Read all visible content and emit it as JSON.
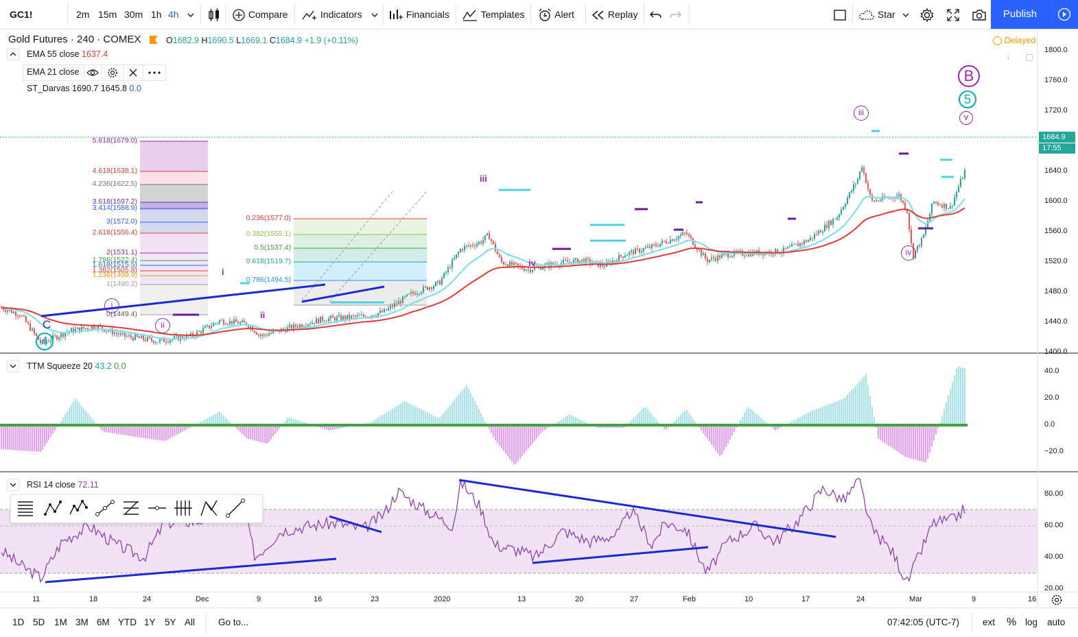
{
  "toolbar": {
    "symbol": "GC1!",
    "intervals": [
      "2m",
      "15m",
      "30m",
      "1h",
      "4h"
    ],
    "active_interval": "4h",
    "compare_label": "Compare",
    "indicators_label": "Indicators",
    "financials_label": "Financials",
    "templates_label": "Templates",
    "alert_label": "Alert",
    "replay_label": "Replay",
    "star_label": "Star",
    "publish_label": "Publish",
    "accent_color": "#2962ff"
  },
  "header": {
    "title": "Gold Futures · 240 · COMEX",
    "o_label": "O",
    "o_value": "1682.9",
    "h_label": "H",
    "h_value": "1690.5",
    "l_label": "L",
    "l_value": "1669.1",
    "c_label": "C",
    "c_value": "1684.9",
    "change": "+1.9 (+0.11%)",
    "delayed_label": "Delayed",
    "up_color": "#26a69a"
  },
  "indicators": {
    "ema55_label": "EMA 55 close",
    "ema55_value": "1637.4",
    "ema21_label": "EMA 21 close",
    "darvas_label": "ST_Darvas",
    "darvas_v1": "1690.7",
    "darvas_v2": "1645.8",
    "darvas_v3": "0.0",
    "ttm_label": "TTM Squeeze 20",
    "ttm_v1": "43.2",
    "ttm_v2": "0.0",
    "rsi_label": "RSI 14 close",
    "rsi_value": "72.11"
  },
  "price_axis": {
    "ticks": [
      "1800.0",
      "1760.0",
      "1720.0",
      "1680.0",
      "1640.0",
      "1600.0",
      "1560.0",
      "1520.0",
      "1480.0",
      "1440.0",
      "1400.0"
    ],
    "last_price": "1684.9",
    "countdown": "17:55"
  },
  "ttm_axis": {
    "ticks": [
      "40.0",
      "20.0",
      "0.0",
      "−20.0"
    ]
  },
  "rsi_axis": {
    "ticks": [
      "80.00",
      "60.00",
      "40.00",
      "20.00"
    ]
  },
  "time_axis": {
    "ticks": [
      "11",
      "18",
      "24",
      "Dec",
      "9",
      "16",
      "23",
      "2020",
      "13",
      "20",
      "27",
      "Feb",
      "10",
      "17",
      "24",
      "Mar",
      "9",
      "16"
    ]
  },
  "fib_ext": {
    "levels": [
      "5.618(1679.0)",
      "4.618(1638.1)",
      "4.236(1622.5)",
      "3.618(1597.2)",
      "3.414(1588.9)",
      "3(1572.0)",
      "2.618(1556.4)",
      "2(1531.1)",
      "1.786(1522.4)",
      "1.618(1515.5)",
      "1.382(1505.8)",
      "1.236(1499.9)",
      "1(1490.2)",
      "0(1449.4)"
    ]
  },
  "fib_ret": {
    "levels": [
      "0.236(1577.0)",
      "0.382(1555.1)",
      "0.5(1537.4)",
      "0.618(1519.7)",
      "0.786(1494.5)"
    ]
  },
  "wave_labels": {
    "big_B": "B",
    "big_5": "5",
    "big_4": "4",
    "C_lower": "C",
    "iii_top": "iii",
    "v_top": "v",
    "iv_low": "iv",
    "ii_low": "ii",
    "i_low": "i",
    "iii_mid": "iii",
    "iv_mid": "iv",
    "ii_mid": "ii",
    "i_mid": "i"
  },
  "bottom_bar": {
    "ranges": [
      "1D",
      "5D",
      "1M",
      "3M",
      "6M",
      "YTD",
      "1Y",
      "5Y",
      "All"
    ],
    "goto_label": "Go to...",
    "clock": "07:42:05 (UTC-7)",
    "ext": "ext",
    "percent": "%",
    "log": "log",
    "auto": "auto"
  }
}
